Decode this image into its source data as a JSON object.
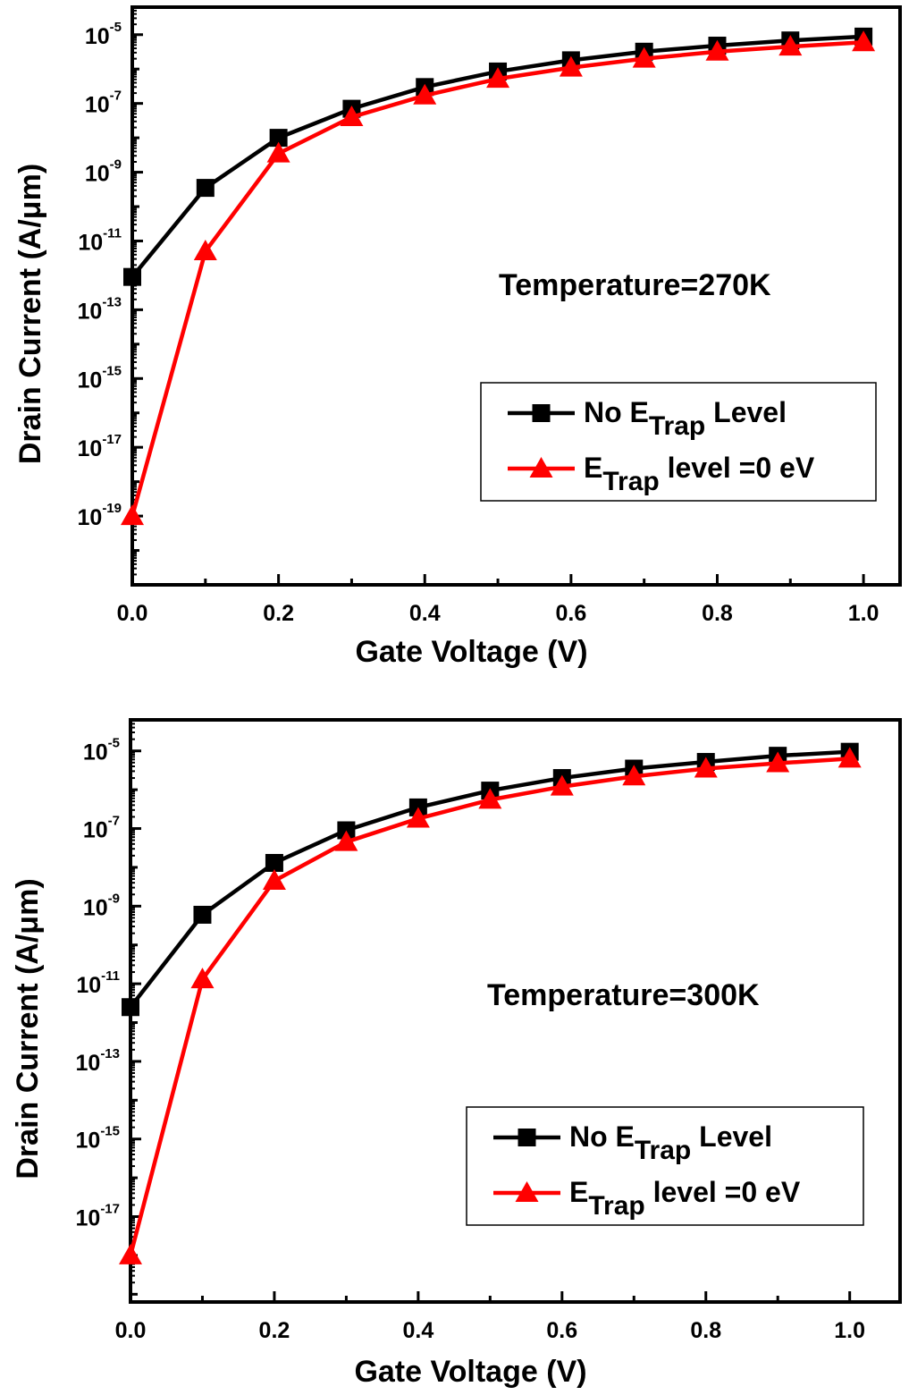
{
  "chart_data": [
    {
      "type": "line",
      "annotation": "Temperature=270K",
      "xlabel": "Gate Voltage (V)",
      "ylabel": "Drain Current (A/μm)",
      "x": [
        0.0,
        0.1,
        0.2,
        0.3,
        0.4,
        0.5,
        0.6,
        0.7,
        0.8,
        0.9,
        1.0
      ],
      "xlim": [
        0.0,
        1.05
      ],
      "yscale": "log",
      "ylim_exp": [
        -21,
        -4.2
      ],
      "x_ticks": [
        "0.0",
        "0.2",
        "0.4",
        "0.6",
        "0.8",
        "1.0"
      ],
      "y_ticks": [
        {
          "base": "10",
          "exp": "-5"
        },
        {
          "base": "10",
          "exp": "-7"
        },
        {
          "base": "10",
          "exp": "-9"
        },
        {
          "base": "10",
          "exp": "-11"
        },
        {
          "base": "10",
          "exp": "-13"
        },
        {
          "base": "10",
          "exp": "-15"
        },
        {
          "base": "10",
          "exp": "-17"
        },
        {
          "base": "10",
          "exp": "-19"
        }
      ],
      "series": [
        {
          "name_main": "No E",
          "name_sub": "Trap",
          "name_tail": " Level",
          "color": "#000000",
          "marker": "square",
          "values": [
            9e-13,
            3.5e-10,
            1e-08,
            7e-08,
            3e-07,
            8.5e-07,
            1.8e-06,
            3.2e-06,
            4.8e-06,
            6.8e-06,
            8.8e-06
          ]
        },
        {
          "name_main": "E",
          "name_sub": "Trap",
          "name_tail": " level =0 eV",
          "color": "#ff0000",
          "marker": "triangle",
          "values": [
            1e-19,
            5e-12,
            3.5e-09,
            4e-08,
            1.7e-07,
            5.2e-07,
            1.1e-06,
            2e-06,
            3.2e-06,
            4.5e-06,
            6e-06
          ]
        }
      ],
      "legend_position": "lower-right"
    },
    {
      "type": "line",
      "annotation": "Temperature=300K",
      "xlabel": "Gate Voltage (V)",
      "ylabel": "Drain Current (A/μm)",
      "x": [
        0.0,
        0.1,
        0.2,
        0.3,
        0.4,
        0.5,
        0.6,
        0.7,
        0.8,
        0.9,
        1.0
      ],
      "xlim": [
        0.0,
        1.07
      ],
      "yscale": "log",
      "ylim_exp": [
        -19.2,
        -4.2
      ],
      "x_ticks": [
        "0.0",
        "0.2",
        "0.4",
        "0.6",
        "0.8",
        "1.0"
      ],
      "y_ticks": [
        {
          "base": "10",
          "exp": "-5"
        },
        {
          "base": "10",
          "exp": "-7"
        },
        {
          "base": "10",
          "exp": "-9"
        },
        {
          "base": "10",
          "exp": "-11"
        },
        {
          "base": "10",
          "exp": "-13"
        },
        {
          "base": "10",
          "exp": "-15"
        },
        {
          "base": "10",
          "exp": "-17"
        }
      ],
      "series": [
        {
          "name_main": "No E",
          "name_sub": "Trap",
          "name_tail": " Level",
          "color": "#000000",
          "marker": "square",
          "values": [
            2.5e-12,
            6e-10,
            1.3e-08,
            9e-08,
            3.5e-07,
            9.5e-07,
            2e-06,
            3.5e-06,
            5.2e-06,
            7.5e-06,
            9.5e-06
          ]
        },
        {
          "name_main": "E",
          "name_sub": "Trap",
          "name_tail": " level =0 eV",
          "color": "#ff0000",
          "marker": "triangle",
          "values": [
            1e-18,
            1.3e-11,
            4.5e-09,
            4.5e-08,
            1.8e-07,
            5.5e-07,
            1.2e-06,
            2.2e-06,
            3.5e-06,
            4.8e-06,
            6.3e-06
          ]
        }
      ],
      "legend_position": "lower-right"
    }
  ]
}
